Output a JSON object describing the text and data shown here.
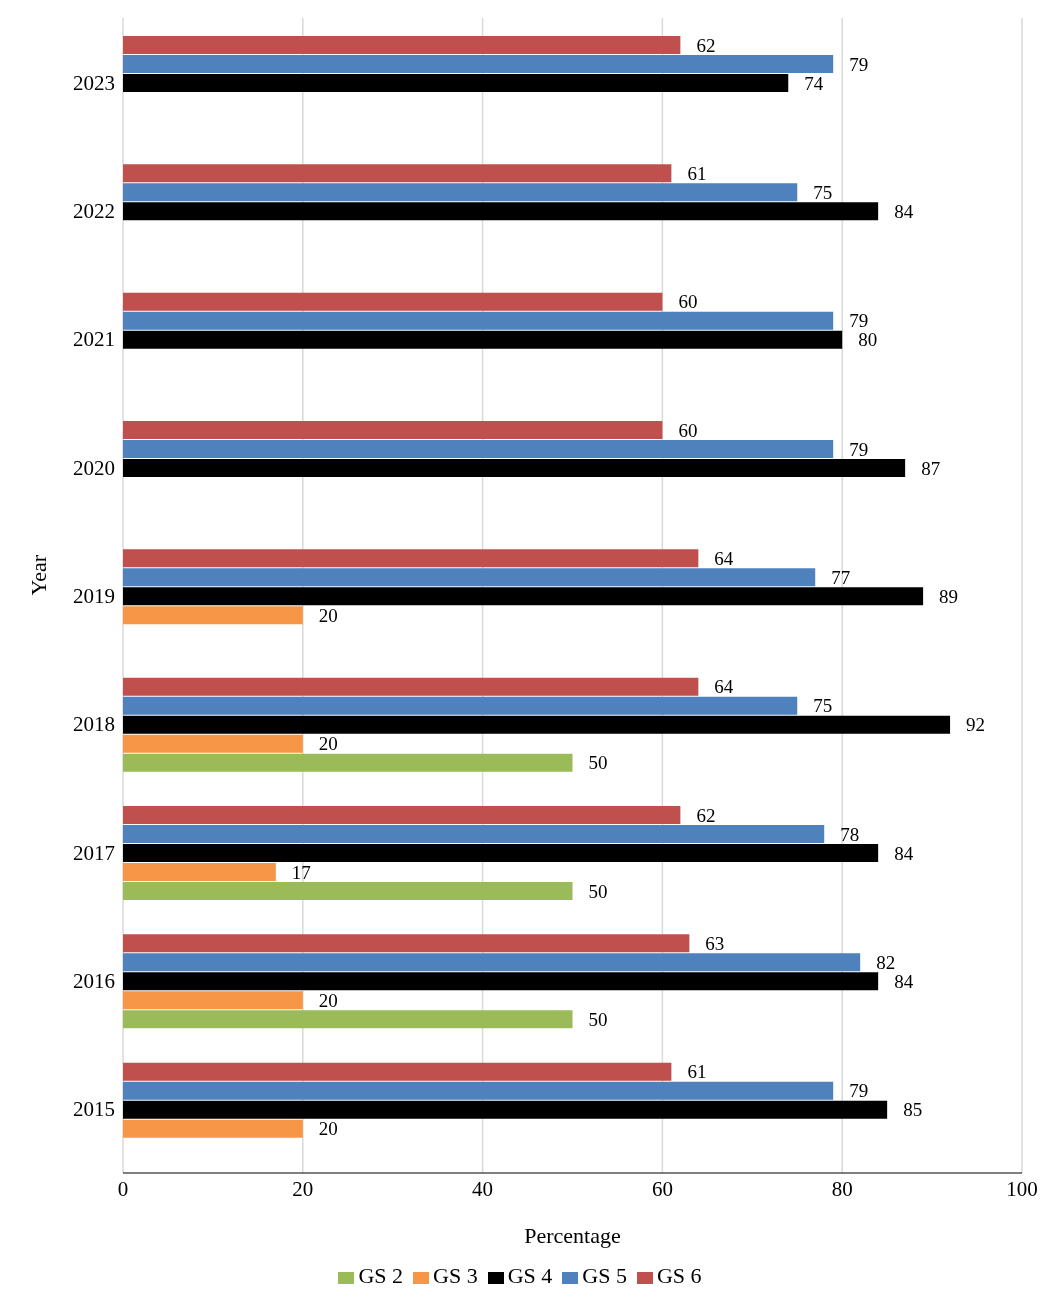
{
  "chart_data": {
    "type": "bar",
    "orientation": "horizontal",
    "xlabel": "Percentage",
    "ylabel": "Year",
    "categories": [
      "2023",
      "2022",
      "2021",
      "2020",
      "2019",
      "2018",
      "2017",
      "2016",
      "2015"
    ],
    "series": [
      {
        "name": "GS 6",
        "color": "#c0504d",
        "values": [
          62,
          61,
          60,
          60,
          64,
          64,
          62,
          63,
          61
        ]
      },
      {
        "name": "GS 5",
        "color": "#4f81bd",
        "values": [
          79,
          75,
          79,
          79,
          77,
          75,
          78,
          82,
          79
        ]
      },
      {
        "name": "GS 4",
        "color": "#000000",
        "values": [
          74,
          84,
          80,
          87,
          89,
          92,
          84,
          84,
          85
        ]
      },
      {
        "name": "GS 3",
        "color": "#f79646",
        "values": [
          null,
          null,
          null,
          null,
          20,
          20,
          17,
          20,
          20
        ]
      },
      {
        "name": "GS 2",
        "color": "#9bbb59",
        "values": [
          null,
          null,
          null,
          null,
          null,
          50,
          50,
          50,
          null
        ]
      }
    ],
    "xlim": [
      0,
      100
    ],
    "xticks": [
      0,
      20,
      40,
      60,
      80,
      100
    ],
    "grid": "x",
    "legend": "bottom",
    "data_labels": true
  }
}
